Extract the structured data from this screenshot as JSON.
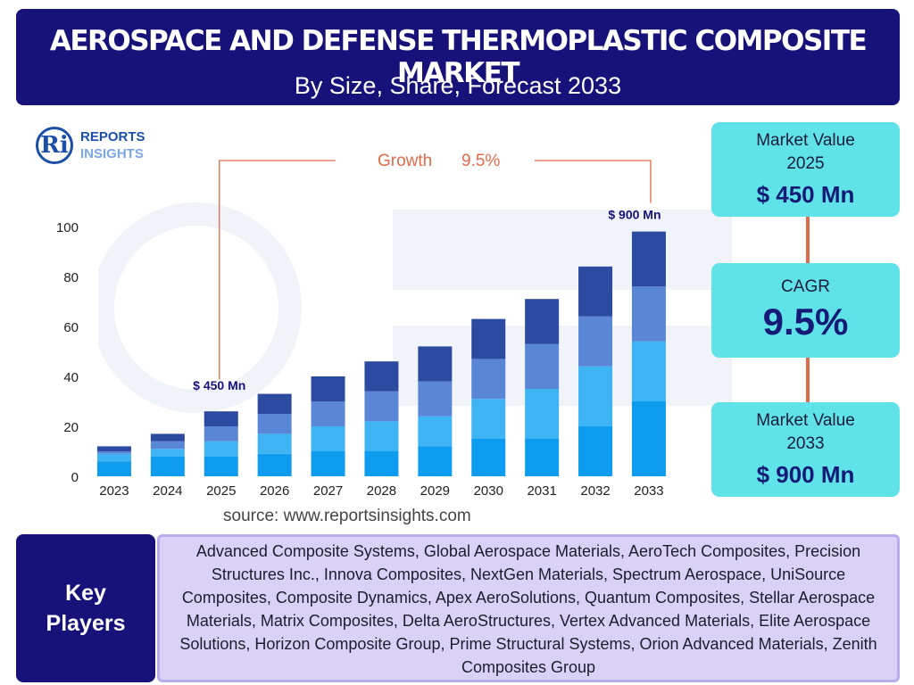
{
  "header": {
    "title": "AEROSPACE AND DEFENSE THERMOPLASTIC COMPOSITE MARKET",
    "subtitle": "By Size, Share, Forecast 2033"
  },
  "logo": {
    "mark": "Ri",
    "line1": "REPORTS",
    "line2": "INSIGHTS"
  },
  "chart_data": {
    "type": "bar",
    "stacked": true,
    "categories": [
      "2023",
      "2024",
      "2025",
      "2026",
      "2027",
      "2028",
      "2029",
      "2030",
      "2031",
      "2032",
      "2033"
    ],
    "series": [
      {
        "values": [
          6,
          8,
          8,
          9,
          10,
          10,
          12,
          15,
          15,
          20,
          30
        ]
      },
      {
        "values": [
          3,
          3,
          6,
          8,
          10,
          12,
          12,
          16,
          20,
          24,
          24
        ]
      },
      {
        "values": [
          1,
          3,
          6,
          8,
          10,
          12,
          14,
          16,
          18,
          20,
          22
        ]
      },
      {
        "values": [
          2,
          3,
          6,
          8,
          10,
          12,
          14,
          16,
          18,
          20,
          22
        ]
      }
    ],
    "series_colors": [
      "#0d9cf0",
      "#3fb4f5",
      "#5a86d6",
      "#2b4aa0"
    ],
    "yticks": [
      0,
      20,
      40,
      60,
      80,
      100
    ],
    "ylim": [
      0,
      100
    ],
    "grid": false,
    "annotations": {
      "start_label": "$ 450 Mn",
      "end_label": "$ 900 Mn",
      "growth_text": "Growth",
      "growth_value": "9.5%"
    },
    "bracket_color": "#e06a4a"
  },
  "source": "source: www.reportsinsights.com",
  "side_panels": {
    "value_2025": {
      "label_line1": "Market Value",
      "label_line2": "2025",
      "value": "$ 450 Mn"
    },
    "cagr": {
      "label": "CAGR",
      "value": "9.5%"
    },
    "value_2033": {
      "label_line1": "Market Value",
      "label_line2": "2033",
      "value": "$ 900 Mn"
    }
  },
  "key_players": {
    "title_line1": "Key",
    "title_line2": "Players",
    "list": "Advanced Composite Systems, Global Aerospace Materials, AeroTech Composites, Precision Structures Inc., Innova Composites, NextGen Materials, Spectrum Aerospace, UniSource Composites, Composite Dynamics, Apex AeroSolutions, Quantum Composites, Stellar Aerospace Materials, Matrix Composites, Delta AeroStructures, Vertex Advanced Materials, Elite Aerospace Solutions, Horizon Composite Group, Prime Structural Systems, Orion Advanced Materials, Zenith Composites Group"
  }
}
